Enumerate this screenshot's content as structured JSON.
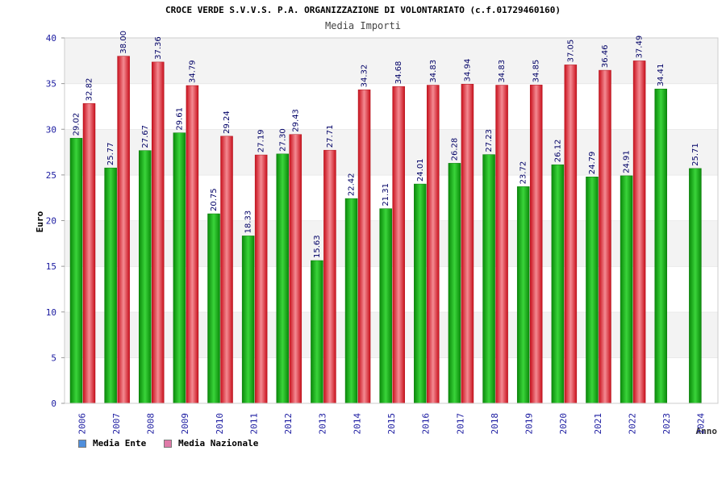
{
  "chart_data": {
    "type": "bar",
    "title": "CROCE VERDE S.V.V.S. P.A. ORGANIZZAZIONE DI VOLONTARIATO (c.f.01729460160)",
    "subtitle": "Media Importi",
    "xlabel": "Anno",
    "ylabel": "Euro",
    "ylim": [
      0,
      40
    ],
    "yticks": [
      "0",
      "5",
      "10",
      "15",
      "20",
      "25",
      "30",
      "35",
      "40"
    ],
    "categories": [
      "2006",
      "2007",
      "2008",
      "2009",
      "2010",
      "2011",
      "2012",
      "2013",
      "2014",
      "2015",
      "2016",
      "2017",
      "2018",
      "2019",
      "2020",
      "2021",
      "2022",
      "2023",
      "2024"
    ],
    "series": [
      {
        "name": "Media Ente",
        "legend_color": "#4f8fdc",
        "bar_color": "#18b418",
        "values": [
          29.02,
          25.77,
          27.67,
          29.61,
          20.75,
          18.33,
          27.3,
          15.63,
          22.42,
          21.31,
          24.01,
          26.28,
          27.23,
          23.72,
          26.12,
          24.79,
          24.91,
          34.41,
          25.71
        ],
        "labels": [
          "29.02",
          "25.77",
          "27.67",
          "29.61",
          "20.75",
          "18.33",
          "27.30",
          "15.63",
          "22.42",
          "21.31",
          "24.01",
          "26.28",
          "27.23",
          "23.72",
          "26.12",
          "24.79",
          "24.91",
          "34.41",
          "25.71"
        ]
      },
      {
        "name": "Media Nazionale",
        "legend_color": "#e07aa8",
        "bar_color": "#e62a35",
        "values": [
          32.82,
          38.0,
          37.36,
          34.79,
          29.24,
          27.19,
          29.43,
          27.71,
          34.32,
          34.68,
          34.83,
          34.94,
          34.83,
          34.85,
          37.05,
          36.46,
          37.49,
          null,
          null
        ],
        "labels": [
          "32.82",
          "38.00",
          "37.36",
          "34.79",
          "29.24",
          "27.19",
          "29.43",
          "27.71",
          "34.32",
          "34.68",
          "34.83",
          "34.94",
          "34.83",
          "34.85",
          "37.05",
          "36.46",
          "37.49",
          null,
          null
        ]
      }
    ],
    "grid": true,
    "legend_position": "bottom-left"
  }
}
